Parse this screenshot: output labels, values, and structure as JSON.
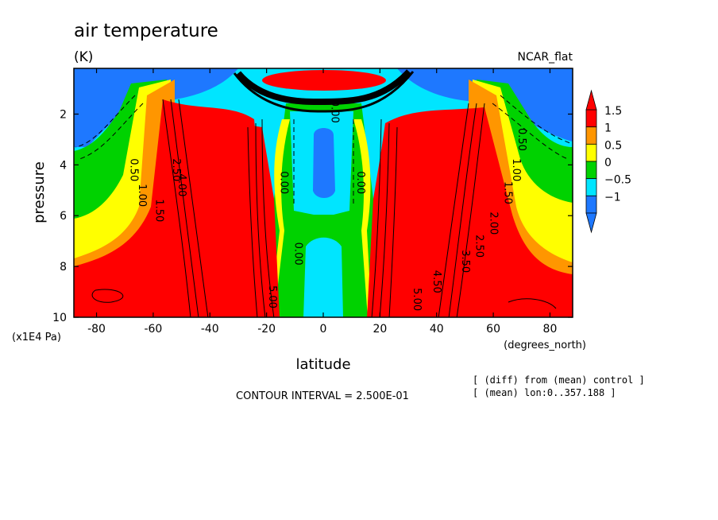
{
  "chart_data": {
    "type": "heatmap",
    "title": "air temperature",
    "units": "(K)",
    "dataset_label": "NCAR_flat",
    "xlabel": "latitude",
    "x_units": "(degrees_north)",
    "ylabel": "pressure",
    "y_units": "(x1E4 Pa)",
    "xlim": [
      -88,
      88
    ],
    "ylim": [
      10,
      0.2
    ],
    "x_ticks": [
      -80,
      -60,
      -40,
      -20,
      0,
      20,
      40,
      60,
      80
    ],
    "y_ticks": [
      2,
      4,
      6,
      8,
      10
    ],
    "contour_interval_text": "CONTOUR INTERVAL = 2.500E-01",
    "notes": [
      "[ (diff) from (mean) control ]",
      "[ (mean) lon:0..357.188 ]"
    ],
    "colorbar": {
      "labels": [
        "1.5",
        "1",
        "0.5",
        "0",
        "−0.5",
        "−1"
      ],
      "levels": [
        -1.5,
        -1,
        -0.5,
        0,
        0.5,
        1,
        1.5
      ],
      "colors": [
        "#1e78ff",
        "#00e5ff",
        "#00d200",
        "#ffff00",
        "#ff9600",
        "#ff0000"
      ],
      "arrow_low": "#1e78ff",
      "arrow_high": "#ff0000"
    },
    "contour_labels": [
      {
        "text": "0.50",
        "lat": -68,
        "p": 4.2
      },
      {
        "text": "1.00",
        "lat": -65,
        "p": 5.2
      },
      {
        "text": "1.50",
        "lat": -59,
        "p": 5.8
      },
      {
        "text": "2.50",
        "lat": -53,
        "p": 4.2
      },
      {
        "text": "4.00",
        "lat": -51,
        "p": 4.8
      },
      {
        "text": "0.00",
        "lat": -15,
        "p": 4.7
      },
      {
        "text": "0.00",
        "lat": -10,
        "p": 7.5
      },
      {
        "text": "0.00",
        "lat": 3,
        "p": 1.9
      },
      {
        "text": "0.00",
        "lat": 12,
        "p": 4.7
      },
      {
        "text": "0.50",
        "lat": 69,
        "p": 3.0
      },
      {
        "text": "1.00",
        "lat": 67,
        "p": 4.2
      },
      {
        "text": "1.50",
        "lat": 64,
        "p": 5.1
      },
      {
        "text": "2.00",
        "lat": 59,
        "p": 6.3
      },
      {
        "text": "2.50",
        "lat": 54,
        "p": 7.2
      },
      {
        "text": "3.50",
        "lat": 49,
        "p": 7.8
      },
      {
        "text": "4.50",
        "lat": 39,
        "p": 8.6
      },
      {
        "text": "5.00",
        "lat": 32,
        "p": 9.3
      },
      {
        "text": "5.00",
        "lat": -19,
        "p": 9.2
      }
    ]
  }
}
